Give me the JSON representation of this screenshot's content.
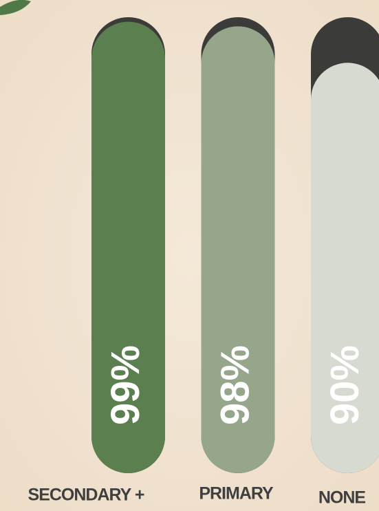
{
  "chart_data": {
    "type": "bar",
    "categories": [
      "SECONDARY +",
      "PRIMARY",
      "NONE"
    ],
    "values": [
      99,
      98,
      90
    ],
    "value_labels": [
      "99%",
      "98%",
      "90%"
    ],
    "colors": [
      "#5b7f4f",
      "#95a68a",
      "#d6dad0"
    ],
    "track_color": "#3b3b39",
    "ylim": [
      0,
      100
    ]
  }
}
